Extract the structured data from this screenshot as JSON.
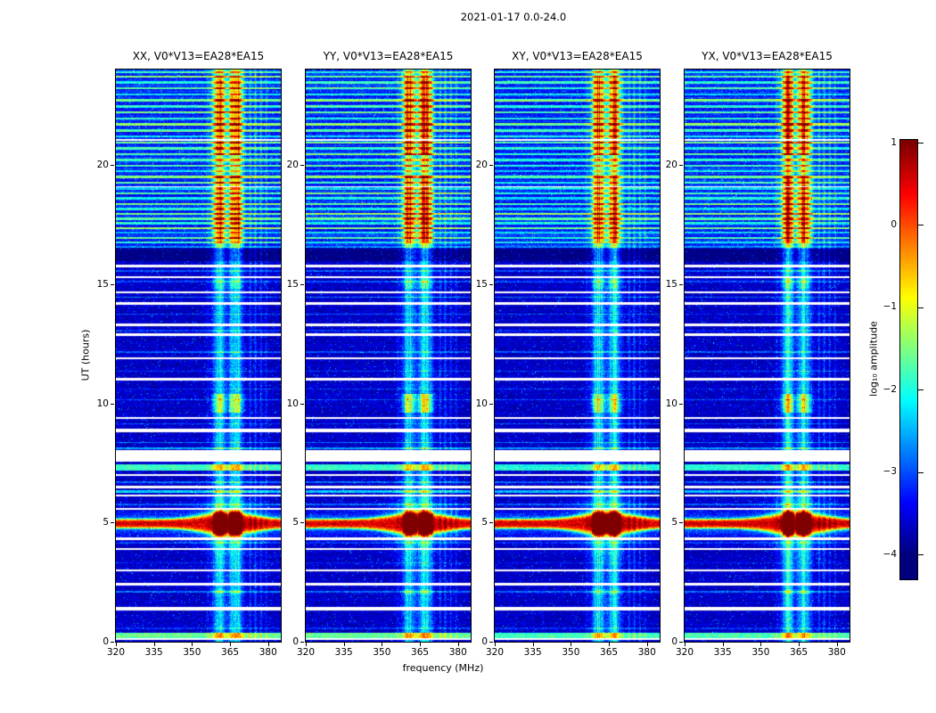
{
  "chart_data": {
    "type": "heatmap",
    "title": "2021-01-17 0.0-24.0",
    "xlabel": "frequency (MHz)",
    "ylabel": "UT (hours)",
    "x_range": [
      320,
      385
    ],
    "y_range": [
      0,
      24
    ],
    "x_ticks": [
      320,
      335,
      350,
      365,
      380
    ],
    "y_ticks": [
      0,
      5,
      10,
      15,
      20
    ],
    "grid": false,
    "colorbar": {
      "label": "log₁₀ amplitude",
      "ticks": [
        1,
        0,
        -1,
        -2,
        -3,
        -4
      ],
      "tick_labels": [
        "1",
        "0",
        "−1",
        "−2",
        "−3",
        "−4"
      ],
      "vmin": -4,
      "vmax": 1,
      "colormap": "jet"
    },
    "panels": [
      {
        "key": "xx",
        "title": "XX, V0*V13=EA28*EA15",
        "seed": 101,
        "stripe_gain": 1.0,
        "rfi_gain": 1.0
      },
      {
        "key": "yy",
        "title": "YY, V0*V13=EA28*EA15",
        "seed": 202,
        "stripe_gain": 1.0,
        "rfi_gain": 1.2
      },
      {
        "key": "xy",
        "title": "XY, V0*V13=EA28*EA15",
        "seed": 303,
        "stripe_gain": 0.9,
        "rfi_gain": 0.95
      },
      {
        "key": "yx",
        "title": "YX, V0*V13=EA28*EA15",
        "seed": 404,
        "stripe_gain": 0.95,
        "rfi_gain": 1.05
      }
    ],
    "features": {
      "background_level": -3.65,
      "noise_sigma": 0.5,
      "spark_probability": 0.02,
      "spark_amp": 1.0,
      "upper_region_start": 16.6,
      "upper_region_lift": 0.45,
      "rfi_band": {
        "base_boost": 1.45,
        "peaks": [
          {
            "f": 360.8,
            "w": 2.4
          },
          {
            "f": 367.2,
            "w": 2.6
          }
        ],
        "narrow_lines": [
          {
            "f": 356.3,
            "w": 0.5,
            "a": 0.25
          },
          {
            "f": 373.0,
            "w": 0.45,
            "a": 0.55
          },
          {
            "f": 375.0,
            "w": 0.5,
            "a": 0.6
          },
          {
            "f": 377.2,
            "w": 0.45,
            "a": 0.5
          },
          {
            "f": 379.3,
            "w": 0.4,
            "a": 0.42
          }
        ],
        "time_boosts": [
          {
            "t0": 2.0,
            "t1": 2.2,
            "a": 0.4
          },
          {
            "t0": 9.6,
            "t1": 10.4,
            "a": 1.25
          },
          {
            "t0": 14.8,
            "t1": 15.3,
            "a": 0.5
          },
          {
            "t0": 16.8,
            "t1": 18.6,
            "a": 1.0
          },
          {
            "t0": 18.6,
            "t1": 19.5,
            "a": 0.8
          },
          {
            "t0": 20.4,
            "t1": 22.7,
            "a": 1.0
          },
          {
            "t0": 22.7,
            "t1": 23.7,
            "a": 0.8
          }
        ]
      },
      "burst": {
        "t": 4.95,
        "broad_amp": 3.3,
        "broad_width": 0.2,
        "width_band_extra": 0.3,
        "band_center": 364.0,
        "band_sigma": 13.0,
        "inband_amp": 3.0,
        "inband_width": 0.5,
        "skirt_amp": 0.9
      },
      "gaps": [
        [
          0.06,
          0.14
        ],
        [
          1.3,
          1.44
        ],
        [
          2.36,
          2.46
        ],
        [
          2.94,
          3.04
        ],
        [
          3.84,
          3.94
        ],
        [
          4.28,
          4.38
        ],
        [
          5.52,
          5.62
        ],
        [
          6.08,
          6.16
        ],
        [
          6.44,
          6.54
        ],
        [
          6.94,
          7.04
        ],
        [
          7.55,
          8.02
        ],
        [
          8.8,
          8.92
        ],
        [
          9.33,
          9.43
        ],
        [
          10.94,
          11.06
        ],
        [
          11.84,
          11.94
        ],
        [
          12.84,
          12.94
        ],
        [
          13.24,
          13.34
        ],
        [
          14.14,
          14.24
        ],
        [
          14.6,
          14.7
        ],
        [
          15.24,
          15.34
        ],
        [
          15.7,
          15.8
        ],
        [
          19.07,
          19.12
        ],
        [
          21.02,
          21.07
        ]
      ],
      "stripes": [
        [
          0.26,
          0.2,
          2.0
        ],
        [
          0.55,
          0.06,
          0.5
        ],
        [
          2.08,
          0.08,
          0.8
        ],
        [
          3.3,
          0.05,
          0.4
        ],
        [
          4.15,
          0.05,
          0.5
        ],
        [
          5.75,
          0.06,
          0.7
        ],
        [
          6.3,
          0.08,
          1.3
        ],
        [
          6.7,
          0.06,
          0.8
        ],
        [
          7.3,
          0.28,
          1.8
        ],
        [
          8.1,
          0.08,
          1.1
        ],
        [
          8.35,
          0.06,
          0.9
        ],
        [
          9.15,
          0.05,
          0.6
        ],
        [
          10.15,
          0.06,
          0.7
        ],
        [
          10.6,
          0.05,
          0.5
        ],
        [
          11.35,
          0.05,
          0.6
        ],
        [
          12.15,
          0.05,
          0.7
        ],
        [
          13.05,
          0.05,
          0.5
        ],
        [
          13.75,
          0.05,
          0.6
        ],
        [
          14.45,
          0.05,
          0.8
        ],
        [
          15.1,
          0.05,
          0.6
        ],
        [
          15.55,
          0.05,
          0.7
        ],
        [
          16.55,
          0.08,
          1.0
        ],
        [
          16.75,
          0.1,
          1.2
        ],
        [
          16.95,
          0.08,
          1.5
        ],
        [
          17.15,
          0.08,
          1.0
        ],
        [
          17.35,
          0.1,
          1.7
        ],
        [
          17.55,
          0.08,
          1.2
        ],
        [
          17.75,
          0.1,
          1.5
        ],
        [
          17.95,
          0.08,
          1.8
        ],
        [
          18.15,
          0.08,
          1.1
        ],
        [
          18.35,
          0.1,
          1.6
        ],
        [
          18.6,
          0.08,
          1.2
        ],
        [
          18.8,
          0.08,
          1.5
        ],
        [
          19.0,
          0.1,
          1.0
        ],
        [
          19.25,
          0.08,
          1.4
        ],
        [
          19.5,
          0.1,
          1.7
        ],
        [
          19.75,
          0.08,
          1.1
        ],
        [
          19.95,
          0.08,
          1.5
        ],
        [
          20.2,
          0.1,
          1.2
        ],
        [
          20.45,
          0.08,
          1.6
        ],
        [
          20.7,
          0.1,
          1.3
        ],
        [
          20.95,
          0.08,
          1.7
        ],
        [
          21.2,
          0.08,
          1.1
        ],
        [
          21.45,
          0.1,
          1.5
        ],
        [
          21.7,
          0.08,
          1.8
        ],
        [
          21.95,
          0.08,
          1.2
        ],
        [
          22.2,
          0.1,
          1.6
        ],
        [
          22.45,
          0.08,
          1.3
        ],
        [
          22.7,
          0.1,
          1.7
        ],
        [
          22.95,
          0.08,
          1.1
        ],
        [
          23.2,
          0.08,
          1.5
        ],
        [
          23.45,
          0.1,
          1.3
        ],
        [
          23.7,
          0.08,
          1.6
        ],
        [
          23.9,
          0.08,
          1.2
        ]
      ],
      "dark_bands": [
        [
          15.95,
          16.5,
          -0.45
        ]
      ]
    }
  }
}
